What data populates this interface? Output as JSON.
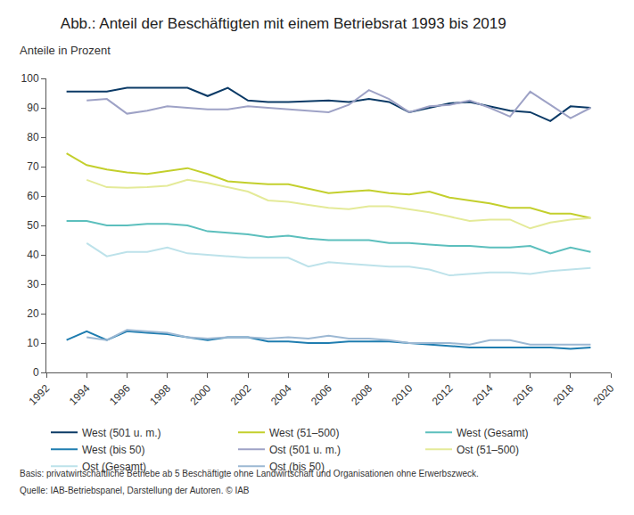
{
  "chart_data": {
    "type": "line",
    "title": "Abb.: Anteil der Beschäftigten mit einem Betriebsrat 1993 bis 2019",
    "subtitle": "Anteile in Prozent",
    "notes": [
      "Basis: privatwirtschaftliche Betriebe ab 5 Beschäftigte ohne Landwirtschaft und Organisationen ohne Erwerbszweck.",
      "Quelle: IAB-Betriebspanel, Darstellung der Autoren. © IAB"
    ],
    "x": [
      1993,
      1994,
      1995,
      1996,
      1997,
      1998,
      1999,
      2000,
      2001,
      2002,
      2003,
      2004,
      2005,
      2006,
      2007,
      2008,
      2009,
      2010,
      2011,
      2012,
      2013,
      2014,
      2015,
      2016,
      2017,
      2018,
      2019
    ],
    "xlim": [
      1992,
      2020
    ],
    "xticks": [
      1992,
      1994,
      1996,
      1998,
      2000,
      2002,
      2004,
      2006,
      2008,
      2010,
      2012,
      2014,
      2016,
      2018,
      2020
    ],
    "ylim": [
      0,
      100
    ],
    "yticks": [
      0,
      10,
      20,
      30,
      40,
      50,
      60,
      70,
      80,
      90,
      100
    ],
    "grid": false,
    "legend": "bottom",
    "series": [
      {
        "name": "West (501 u. m.)",
        "color": "#0b3a66",
        "values": [
          95.5,
          95.5,
          95.5,
          96.8,
          96.8,
          96.8,
          96.8,
          94,
          96.8,
          92.5,
          92,
          92,
          92.2,
          92.5,
          92,
          93,
          92,
          88.5,
          90,
          91.5,
          92,
          90.5,
          89,
          88.5,
          85.5,
          90.5,
          90
        ]
      },
      {
        "name": "West (51–500)",
        "color": "#c3cf2c",
        "values": [
          74.5,
          70.5,
          69,
          68,
          67.5,
          68.5,
          69.5,
          67.5,
          65,
          64.5,
          64,
          64,
          62.5,
          61,
          61.5,
          62,
          61,
          60.5,
          61.5,
          59.5,
          58.5,
          57.5,
          56,
          56,
          54,
          54,
          52.5
        ]
      },
      {
        "name": "West (Gesamt)",
        "color": "#5cbfbd",
        "values": [
          51.5,
          51.5,
          50,
          50,
          50.5,
          50.5,
          50,
          48,
          47.5,
          47,
          46,
          46.5,
          45.5,
          45,
          45,
          45,
          44,
          44,
          43.5,
          43,
          43,
          42.5,
          42.5,
          43,
          40.5,
          42.5,
          41
        ]
      },
      {
        "name": "West (bis 50)",
        "color": "#1f7db0",
        "values": [
          11,
          14,
          11,
          14,
          13.5,
          13,
          12,
          11,
          12,
          12,
          10.5,
          10.5,
          10,
          10,
          10.5,
          10.5,
          10.5,
          10,
          9.5,
          9,
          8.5,
          8.5,
          8.5,
          8.5,
          8.5,
          8,
          8.5
        ]
      },
      {
        "name": "Ost (501 u. m.)",
        "color": "#9ea2c6",
        "values": [
          null,
          92.5,
          93,
          88,
          89,
          90.5,
          90,
          89.5,
          89.5,
          90.5,
          90,
          89.5,
          89,
          88.5,
          91,
          96,
          93,
          88.5,
          90.5,
          91,
          92.5,
          90,
          87,
          95.5,
          91,
          86.5,
          90
        ]
      },
      {
        "name": "Ost (51–500)",
        "color": "#e4ea98",
        "values": [
          null,
          65.5,
          63,
          62.8,
          63,
          63.5,
          65.5,
          64.5,
          63,
          61.5,
          58.5,
          58,
          57,
          56,
          55.5,
          56.5,
          56.5,
          55.5,
          54.5,
          53,
          51.5,
          52,
          52,
          49,
          51,
          52,
          52.5
        ]
      },
      {
        "name": "Ost (Gesamt)",
        "color": "#bde2ea",
        "values": [
          null,
          44,
          39.5,
          41,
          41,
          42.5,
          40.5,
          40,
          39.5,
          39,
          39,
          39,
          36,
          37.5,
          37,
          36.5,
          36,
          36,
          35,
          33,
          33.5,
          34,
          34,
          33.5,
          34.5,
          35,
          35.5
        ]
      },
      {
        "name": "Ost (bis 50)",
        "color": "#9cb8d3",
        "values": [
          null,
          12,
          11,
          14.5,
          14,
          13.5,
          12,
          11.5,
          12,
          12,
          11.5,
          12,
          11.5,
          12.5,
          11.5,
          11.5,
          11,
          10,
          10,
          10,
          9.5,
          11,
          11,
          9.5,
          9.5,
          9.5,
          9.5
        ]
      }
    ]
  }
}
